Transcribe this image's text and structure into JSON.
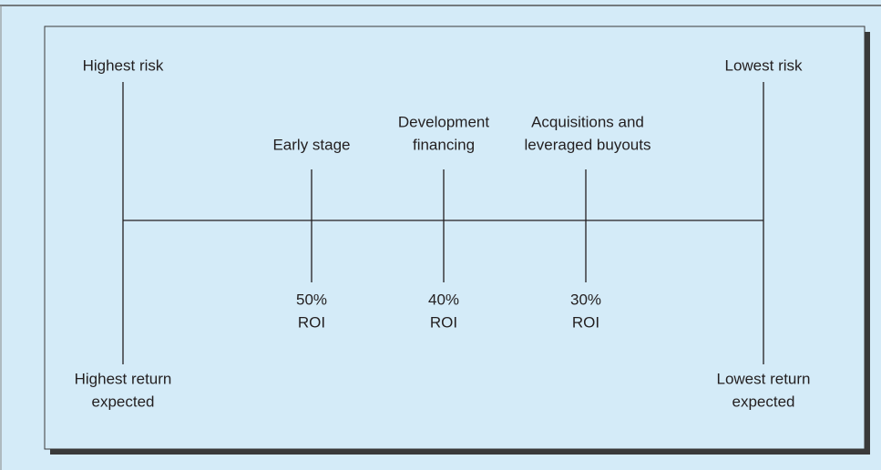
{
  "ends": [
    {
      "top": "Highest risk",
      "bottom": [
        "Highest return",
        "expected"
      ]
    },
    {
      "top": "Lowest risk",
      "bottom": [
        "Lowest return",
        "expected"
      ]
    }
  ],
  "stages": [
    {
      "label": [
        "Early stage"
      ],
      "roi": [
        "50%",
        "ROI"
      ]
    },
    {
      "label": [
        "Development",
        "financing"
      ],
      "roi": [
        "40%",
        "ROI"
      ]
    },
    {
      "label": [
        "Acquisitions and",
        "leveraged buyouts"
      ],
      "roi": [
        "30%",
        "ROI"
      ]
    }
  ]
}
